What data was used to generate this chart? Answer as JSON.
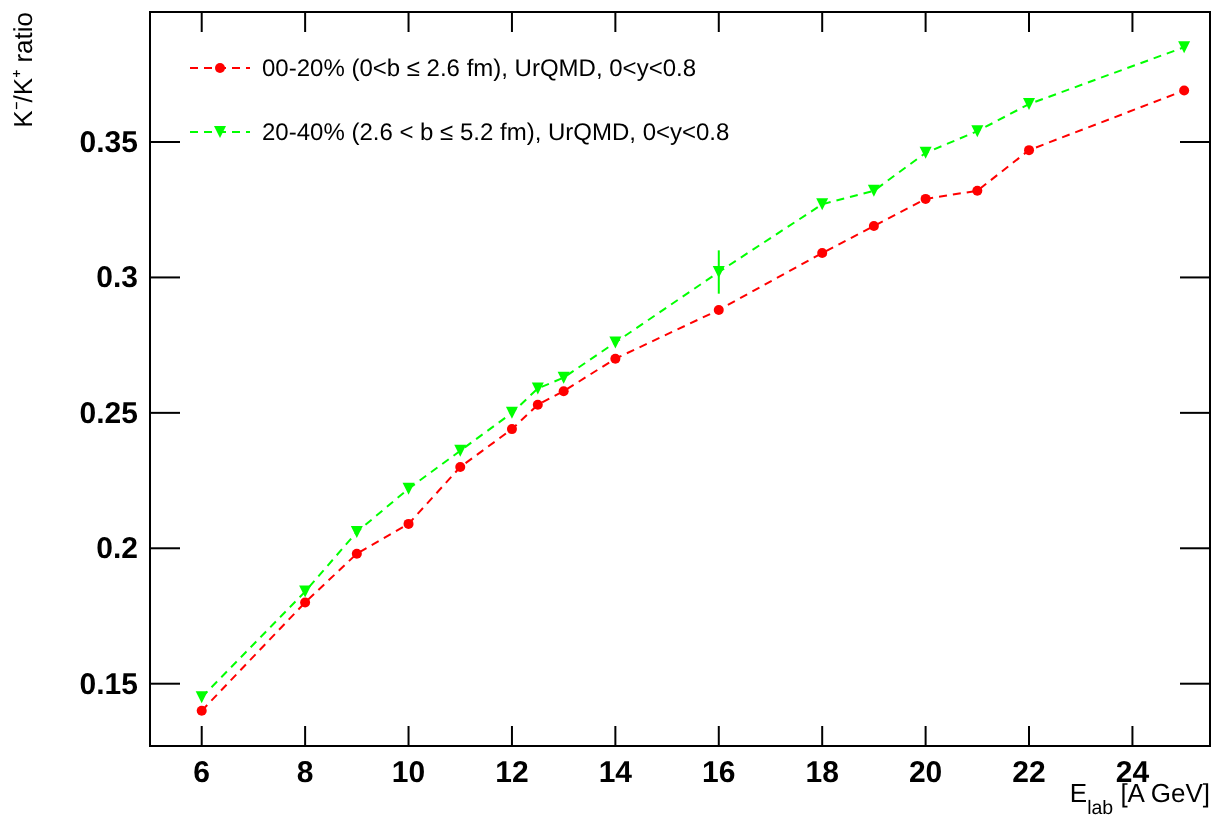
{
  "chart_data": {
    "type": "line",
    "xlabel": "E$_{lab}$  [A GeV]",
    "ylabel": "K⁻/K⁺ ratio",
    "x": [
      6,
      8,
      9,
      10,
      11,
      12,
      12.5,
      13,
      14,
      16,
      18,
      19,
      20,
      21,
      22,
      25
    ],
    "xlim": [
      5,
      25.5
    ],
    "xticks": [
      6,
      8,
      10,
      12,
      14,
      16,
      18,
      20,
      22,
      24
    ],
    "ylim": [
      0.127,
      0.398
    ],
    "yticks": [
      0.15,
      0.2,
      0.25,
      0.3,
      0.35
    ],
    "series": [
      {
        "name": "00-20% (0<b ≤ 2.6 fm), UrQMD, 0<y<0.8",
        "color": "#ff0000",
        "marker": "circle",
        "values": [
          0.14,
          0.18,
          0.198,
          0.209,
          0.23,
          0.244,
          0.253,
          0.258,
          0.27,
          0.288,
          0.309,
          0.319,
          0.329,
          0.332,
          0.347,
          0.369
        ]
      },
      {
        "name": "20-40% (2.6 < b ≤ 5.2 fm), UrQMD, 0<y<0.8",
        "color": "#00ff00",
        "marker": "triangle",
        "values": [
          0.145,
          0.184,
          0.206,
          0.222,
          0.236,
          0.25,
          0.259,
          0.263,
          0.276,
          0.302,
          0.327,
          0.332,
          0.346,
          0.354,
          0.364,
          0.385
        ],
        "errors": [
          null,
          null,
          null,
          null,
          null,
          null,
          null,
          null,
          null,
          0.008,
          null,
          null,
          null,
          null,
          null,
          null
        ]
      }
    ],
    "line_style": "dashed",
    "grid": false,
    "legend": "top left"
  }
}
